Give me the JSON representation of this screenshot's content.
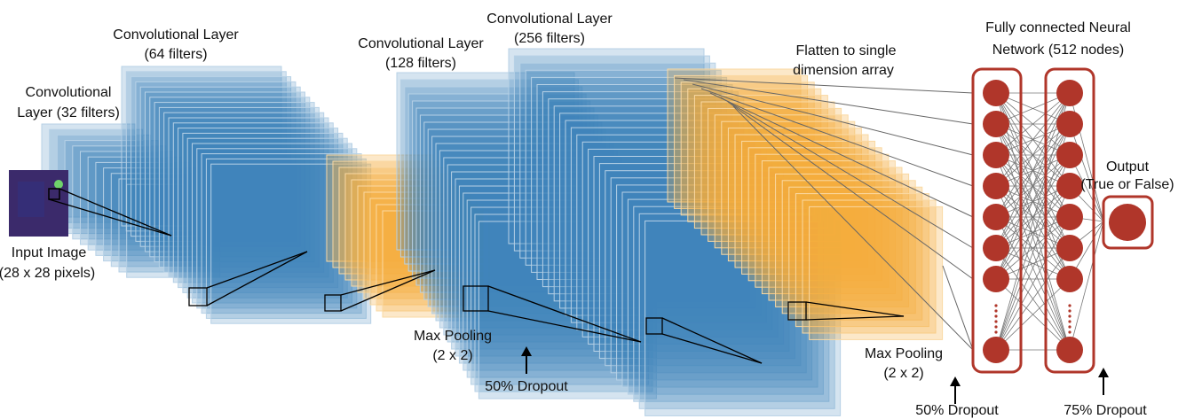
{
  "labels": {
    "conv32": {
      "lines": [
        "Convolutional",
        "Layer (32 filters)"
      ]
    },
    "conv64": {
      "lines": [
        "Convolutional Layer",
        "(64 filters)"
      ]
    },
    "conv128": {
      "lines": [
        "Convolutional Layer",
        "(128 filters)"
      ]
    },
    "conv256": {
      "lines": [
        "Convolutional Layer",
        "(256 filters)"
      ]
    },
    "input": {
      "lines": [
        "Input Image",
        "(28 x 28 pixels)"
      ]
    },
    "pool1": {
      "lines": [
        "Max Pooling",
        "(2 x 2)"
      ]
    },
    "dropout1": {
      "lines": [
        "50% Dropout"
      ]
    },
    "flatten": {
      "lines": [
        "Flatten to single",
        "dimension array"
      ]
    },
    "dense": {
      "lines": [
        "Fully connected Neural",
        "Network (512 nodes)"
      ]
    },
    "output": {
      "lines": [
        "Output",
        "(True or False)"
      ]
    },
    "pool2": {
      "lines": [
        "Max Pooling",
        "(2 x 2)"
      ]
    },
    "dropout2": {
      "lines": [
        "50% Dropout"
      ]
    },
    "dropout3": {
      "lines": [
        "75% Dropout"
      ]
    }
  }
}
